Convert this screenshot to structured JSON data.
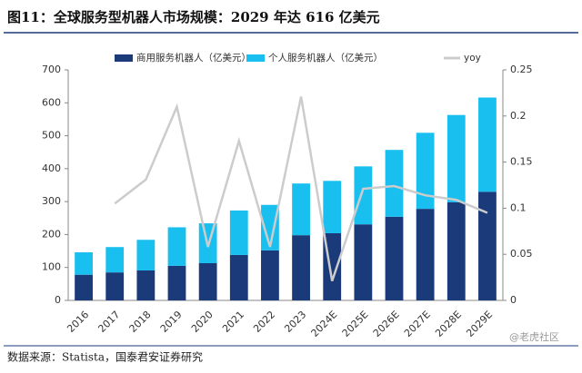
{
  "chart_data": {
    "type": "bar",
    "stacked": true,
    "title": "图11：全球服务型机器人市场规模：2029 年达 616 亿美元",
    "source": "数据来源：Statista，国泰君安证券研究",
    "watermark": "@老虎社区",
    "categories": [
      "2016",
      "2017",
      "2018",
      "2019",
      "2020",
      "2021",
      "2022",
      "2023",
      "2024E",
      "2025E",
      "2026E",
      "2027E",
      "2028E",
      "2029E"
    ],
    "series": [
      {
        "name": "商用服务机器人（亿美元）",
        "color": "#1b3a7a",
        "type": "bar",
        "values": [
          78,
          85,
          91,
          105,
          113,
          138,
          152,
          198,
          204,
          231,
          254,
          278,
          298,
          330
        ]
      },
      {
        "name": "个人服务机器人（亿美元）",
        "color": "#19c0ef",
        "type": "bar",
        "values": [
          68,
          77,
          93,
          117,
          121,
          135,
          138,
          157,
          159,
          176,
          203,
          231,
          265,
          286
        ]
      },
      {
        "name": "yoy",
        "color": "#cccccc",
        "type": "line",
        "axis": "y2",
        "values": [
          null,
          0.105,
          0.131,
          0.21,
          0.058,
          0.173,
          0.058,
          0.221,
          0.021,
          0.121,
          0.124,
          0.114,
          0.109,
          0.095
        ]
      }
    ],
    "ylim": [
      0,
      700
    ],
    "yticks": [
      0,
      100,
      200,
      300,
      400,
      500,
      600,
      700
    ],
    "y2lim": [
      0,
      0.25
    ],
    "y2ticks": [
      0,
      0.05,
      0.1,
      0.15,
      0.2,
      0.25
    ],
    "legend": "top",
    "grid": false
  }
}
